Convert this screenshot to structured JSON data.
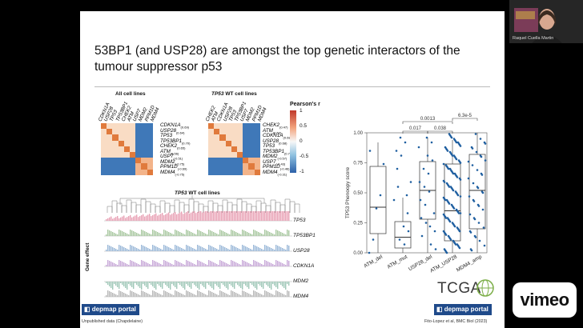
{
  "slide": {
    "title": "53BP1 (and USP28) are amongst the top genetic interactors of the tumour suppressor p53",
    "heatmap_left": {
      "title": "All cell lines",
      "col_labels": [
        "CDKN1A",
        "USP28",
        "TP53",
        "TP53BP1",
        "CHEK2",
        "ATM",
        "USP7",
        "MDM2",
        "PPM1D",
        "MDM4"
      ],
      "row_labels": [
        {
          "gene": "CDKN1A",
          "r": "(0.69)"
        },
        {
          "gene": "USP28",
          "r": "(0.64)"
        },
        {
          "gene": "TP53",
          "r": ""
        },
        {
          "gene": "TP53BP1",
          "r": "(0.70)"
        },
        {
          "gene": "CHEK2",
          "r": "(0.65)"
        },
        {
          "gene": "ATM",
          "r": "(0.56)"
        },
        {
          "gene": "USP7",
          "r": "(-0.51)"
        },
        {
          "gene": "MDM2",
          "r": "(-0.75)"
        },
        {
          "gene": "PPM1D",
          "r": "(-0.69)"
        },
        {
          "gene": "MDM4",
          "r": "(-0.75)"
        }
      ]
    },
    "heatmap_right": {
      "title_gene": "TP53",
      "title_rest": " WT cell lines",
      "col_labels": [
        "CHEK2",
        "ATM",
        "CDKN1A",
        "USP28",
        "TP53",
        "TP53BP1",
        "USP7",
        "MDM2",
        "PPM1D",
        "MDM4"
      ],
      "row_labels": [
        {
          "gene": "CHEK2",
          "r": "(0.47)"
        },
        {
          "gene": "ATM",
          "r": "(0.52)"
        },
        {
          "gene": "CDKN1A",
          "r": "(0.68)"
        },
        {
          "gene": "USP28",
          "r": "(0.68)"
        },
        {
          "gene": "TP53",
          "r": ""
        },
        {
          "gene": "TP53BP1",
          "r": "(0.72)"
        },
        {
          "gene": "MDM2",
          "r": "(-0.57)"
        },
        {
          "gene": "USP7",
          "r": "(-0.43)"
        },
        {
          "gene": "PPM1D",
          "r": "(-0.46)"
        },
        {
          "gene": "MDM4",
          "r": "(-0.31)"
        }
      ]
    },
    "colorbar": {
      "title": "Pearson's r",
      "ticks": [
        "1",
        "0.5",
        "0",
        "-0.5",
        "-1"
      ]
    },
    "bars": {
      "title_gene": "TP53",
      "title_rest": " WT cell lines",
      "ylabel": "Gene effect",
      "tracks": [
        "TP53",
        "TP53BP1",
        "USP28",
        "CDKN1A",
        "MDM2",
        "MDM4"
      ],
      "colors": [
        "#e8a0b4",
        "#a8c8a0",
        "#9ab8d8",
        "#c8a8d8",
        "#a0c8b8",
        "#b8b8b8"
      ]
    },
    "boxplot": {
      "ylabel": "TP53 Phenoopy score",
      "yticks": [
        "0.00",
        "0.25",
        "0.50",
        "0.75",
        "1.00"
      ],
      "groups": [
        "ATM_del",
        "ATM_mut",
        "USP28_del",
        "ATM_USP28",
        "MDM4_amp"
      ],
      "pvalues": [
        "0.0013",
        "0.017",
        "0.038",
        "6.3e-5"
      ]
    },
    "logos": {
      "depmap": "depmap portal",
      "tcga": "TCGA"
    },
    "captions": {
      "left": "Unpublished data (Chapdelaine)",
      "right": "Fito-Lopez et al, BMC Biol (2023)"
    }
  },
  "webcam": {
    "name": "Raquel Cuella Martin"
  },
  "vimeo": {
    "label": "vimeo"
  },
  "chart_data": [
    {
      "type": "scatter",
      "ylabel": "TP53 Phenoopy score",
      "categories": [
        "ATM_del",
        "ATM_mut",
        "USP28_del",
        "ATM_USP28",
        "MDM4_amp"
      ],
      "ylim": [
        0,
        1
      ],
      "median": [
        0.38,
        0.13,
        0.52,
        0.35,
        0.52
      ],
      "q1": [
        0.16,
        0.04,
        0.28,
        0.1,
        0.2
      ],
      "q3": [
        0.72,
        0.26,
        0.76,
        0.74,
        0.82
      ],
      "comparisons": [
        {
          "pair": [
            "ATM_mut",
            "ATM_USP28"
          ],
          "p": "0.0013"
        },
        {
          "pair": [
            "ATM_mut",
            "USP28_del"
          ],
          "p": "0.017"
        },
        {
          "pair": [
            "USP28_del",
            "ATM_USP28"
          ],
          "p": "0.038"
        },
        {
          "pair": [
            "ATM_USP28",
            "MDM4_amp"
          ],
          "p": "6.3e-5"
        }
      ]
    }
  ]
}
